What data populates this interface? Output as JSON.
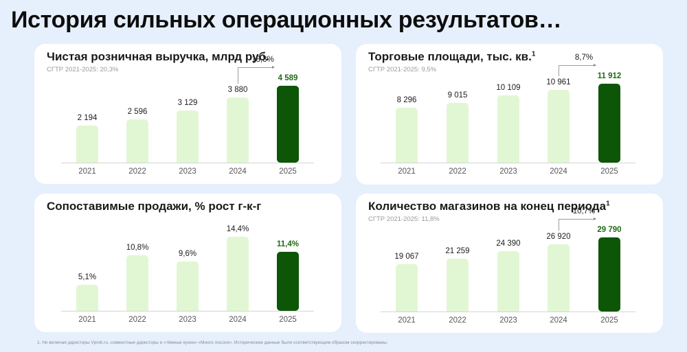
{
  "page": {
    "title": "История сильных операционных результатов…",
    "footnote": "1. Не включая даркстоpы Vprok.ru, совместные даркстоpы и «тёмные кухни» «Много лосося». Исторические данные были соответствующим образом скорректированы."
  },
  "colors": {
    "background": "#e6effc",
    "panel": "#ffffff",
    "bar_light": "#e1f7d3",
    "bar_highlight": "#0d5607",
    "highlight_text": "#1f6b12"
  },
  "chart_data": [
    {
      "type": "bar",
      "id": "net_retail_sales",
      "title": "Чистая розничная выручка, млрд руб.",
      "footnote_marker": "",
      "subtitle": "СГТР 2021-2025: 20,3%",
      "categories": [
        "2021",
        "2022",
        "2023",
        "2024",
        "2025"
      ],
      "values": [
        2194,
        2596,
        3129,
        3880,
        4589
      ],
      "labels": [
        "2 194",
        "2 596",
        "3 129",
        "3 880",
        "4 589"
      ],
      "highlight_index": 4,
      "annotation": {
        "from": "2024",
        "to": "2025",
        "text": "18,3%"
      },
      "xlabel": "",
      "ylabel": "",
      "grid": false
    },
    {
      "type": "bar",
      "id": "selling_space",
      "title": "Торговые площади, тыс. кв.",
      "footnote_marker": "1",
      "subtitle": "СГТР 2021-2025: 9,5%",
      "categories": [
        "2021",
        "2022",
        "2023",
        "2024",
        "2025"
      ],
      "values": [
        8296,
        9015,
        10109,
        10961,
        11912
      ],
      "labels": [
        "8 296",
        "9 015",
        "10 109",
        "10 961",
        "11 912"
      ],
      "highlight_index": 4,
      "annotation": {
        "from": "2024",
        "to": "2025",
        "text": "8,7%"
      },
      "xlabel": "",
      "ylabel": "",
      "grid": false
    },
    {
      "type": "bar",
      "id": "lfl_sales",
      "title": "Сопоставимые продажи, % рост г-к-г",
      "footnote_marker": "",
      "subtitle": "",
      "categories": [
        "2021",
        "2022",
        "2023",
        "2024",
        "2025"
      ],
      "values": [
        5.1,
        10.8,
        9.6,
        14.4,
        11.4
      ],
      "labels": [
        "5,1%",
        "10,8%",
        "9,6%",
        "14,4%",
        "11,4%"
      ],
      "highlight_index": 4,
      "annotation": null,
      "xlabel": "",
      "ylabel": "",
      "grid": false
    },
    {
      "type": "bar",
      "id": "store_count",
      "title": "Количество магазинов на конец периода",
      "footnote_marker": "1",
      "subtitle": "СГТР 2021-2025: 11,8%",
      "categories": [
        "2021",
        "2022",
        "2023",
        "2024",
        "2025"
      ],
      "values": [
        19067,
        21259,
        24390,
        26920,
        29790
      ],
      "labels": [
        "19 067",
        "21 259",
        "24 390",
        "26 920",
        "29 790"
      ],
      "highlight_index": 4,
      "annotation": {
        "from": "2024",
        "to": "2025",
        "text": "10,7%"
      },
      "xlabel": "",
      "ylabel": "",
      "grid": false
    }
  ]
}
